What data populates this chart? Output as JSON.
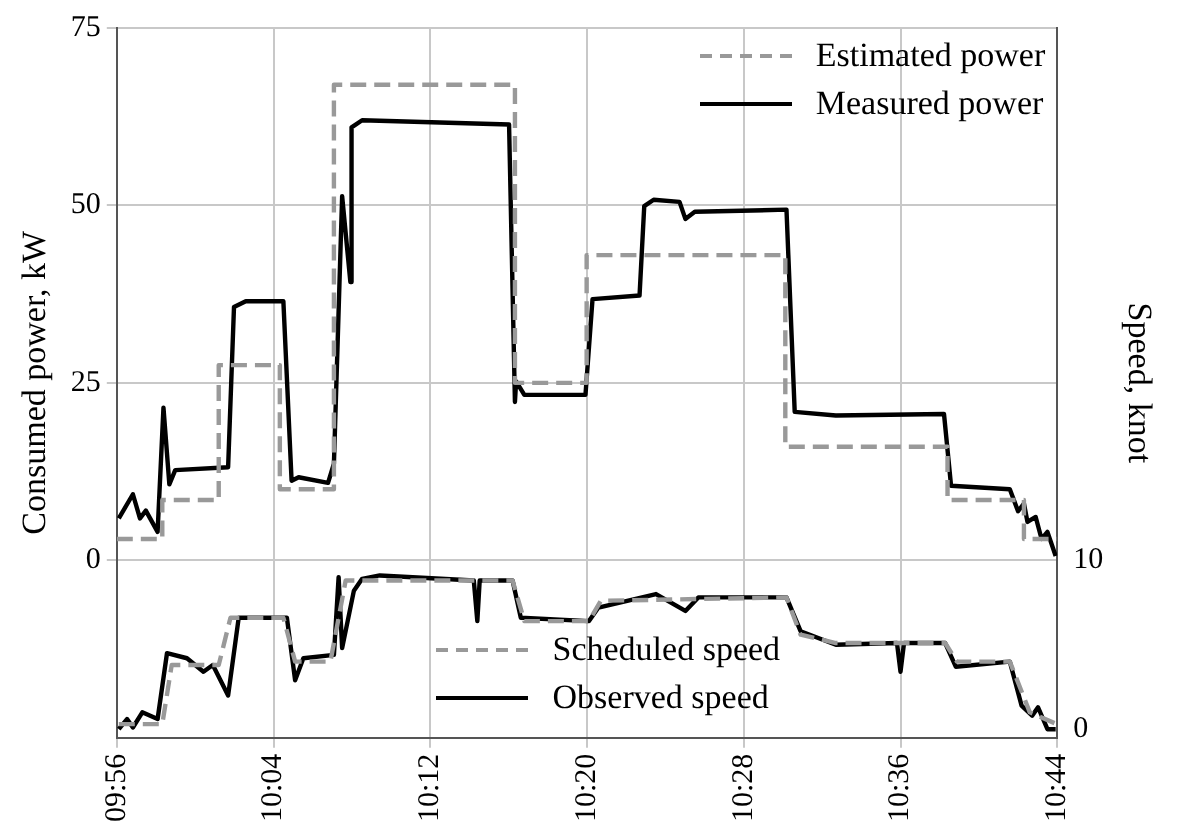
{
  "chart_data": {
    "type": "line",
    "ylabel": "Consumed power, kW",
    "y2label": "Speed, knot",
    "xlim": [
      9.9333,
      10.7333
    ],
    "xticks": [
      {
        "value": 9.9333,
        "label": "09:56"
      },
      {
        "value": 10.0667,
        "label": "10:04"
      },
      {
        "value": 10.2,
        "label": "10:12"
      },
      {
        "value": 10.3333,
        "label": "10:20"
      },
      {
        "value": 10.4667,
        "label": "10:28"
      },
      {
        "value": 10.6,
        "label": "10:36"
      },
      {
        "value": 10.7333,
        "label": "10:44"
      }
    ],
    "ylim": [
      -25,
      75
    ],
    "yticks": [
      0,
      25,
      50,
      75
    ],
    "y2lim": [
      -0.5,
      41.5
    ],
    "y2ticks": [
      0,
      10
    ],
    "grid": true,
    "legend": "top right",
    "marker": "none",
    "series": [
      {
        "name": "Estimated power",
        "type": "step",
        "color": "#999999",
        "line_style": "dashed",
        "x": [
          9.9333,
          9.972,
          10.02,
          10.072,
          10.118,
          10.272,
          10.333,
          10.502,
          10.64,
          10.705,
          10.7333
        ],
        "values": [
          3,
          8.5,
          27.5,
          10,
          67,
          25,
          43,
          16,
          8.5,
          3,
          3
        ]
      },
      {
        "name": "Measured power",
        "type": "line",
        "color": "#000000",
        "line_style": "solid",
        "x": [
          9.935,
          9.947,
          9.953,
          9.958,
          9.968,
          9.973,
          9.978,
          9.983,
          10.028,
          10.033,
          10.043,
          10.075,
          10.082,
          10.088,
          10.113,
          10.118,
          10.125,
          10.132,
          10.133,
          10.142,
          10.267,
          10.272,
          10.273,
          10.28,
          10.332,
          10.338,
          10.378,
          10.382,
          10.39,
          10.412,
          10.417,
          10.425,
          10.503,
          10.51,
          10.545,
          10.637,
          10.643,
          10.693,
          10.7,
          10.705,
          10.708,
          10.715,
          10.72,
          10.725,
          10.732
        ],
        "values": [
          5.9,
          9.3,
          5.9,
          7,
          4,
          21.5,
          10.7,
          12.7,
          13.1,
          35.7,
          36.5,
          36.5,
          11.2,
          11.7,
          10.9,
          13.6,
          51.3,
          39.2,
          61,
          62,
          61.4,
          22.3,
          25.2,
          23.3,
          23.3,
          36.8,
          37.3,
          49.9,
          50.8,
          50.5,
          48.1,
          49.1,
          49.4,
          20.9,
          20.4,
          20.6,
          10.5,
          10,
          6.9,
          8,
          5.4,
          6.1,
          3,
          4,
          0.6
        ]
      },
      {
        "name": "Scheduled speed",
        "type": "line",
        "axis": "y2",
        "color": "#999999",
        "line_style": "dashed",
        "x": [
          9.935,
          9.972,
          9.98,
          10.02,
          10.03,
          10.075,
          10.085,
          10.115,
          10.128,
          10.27,
          10.28,
          10.335,
          10.345,
          10.503,
          10.515,
          10.545,
          10.638,
          10.648,
          10.693,
          10.71,
          10.733
        ],
        "values": [
          0.3,
          0.3,
          3.8,
          3.8,
          6.6,
          6.6,
          4,
          4,
          8.8,
          8.8,
          6.4,
          6.4,
          7.6,
          7.8,
          5.6,
          5.1,
          5.1,
          4,
          4,
          1,
          0.3
        ]
      },
      {
        "name": "Observed speed",
        "type": "line",
        "axis": "y2",
        "color": "#000000",
        "line_style": "solid",
        "x": [
          9.935,
          9.942,
          9.947,
          9.955,
          9.968,
          9.976,
          9.993,
          10.007,
          10.015,
          10.028,
          10.037,
          10.078,
          10.085,
          10.092,
          10.118,
          10.122,
          10.125,
          10.135,
          10.142,
          10.157,
          10.237,
          10.24,
          10.242,
          10.27,
          10.277,
          10.335,
          10.343,
          10.392,
          10.417,
          10.428,
          10.503,
          10.515,
          10.545,
          10.597,
          10.6,
          10.603,
          10.638,
          10.647,
          10.693,
          10.703,
          10.712,
          10.717,
          10.725,
          10.732
        ],
        "values": [
          0,
          0.6,
          0.1,
          1,
          0.6,
          4.5,
          4.2,
          3.4,
          3.8,
          2,
          6.6,
          6.6,
          2.9,
          4.2,
          4.4,
          9,
          4.8,
          8.2,
          8.9,
          9.1,
          8.8,
          6.4,
          8.8,
          8.8,
          6.6,
          6.4,
          7.2,
          8,
          7,
          7.8,
          7.8,
          5.8,
          5,
          5.1,
          3.4,
          5.1,
          5.1,
          3.7,
          4,
          1.4,
          0.8,
          1.3,
          0,
          0
        ]
      }
    ]
  }
}
